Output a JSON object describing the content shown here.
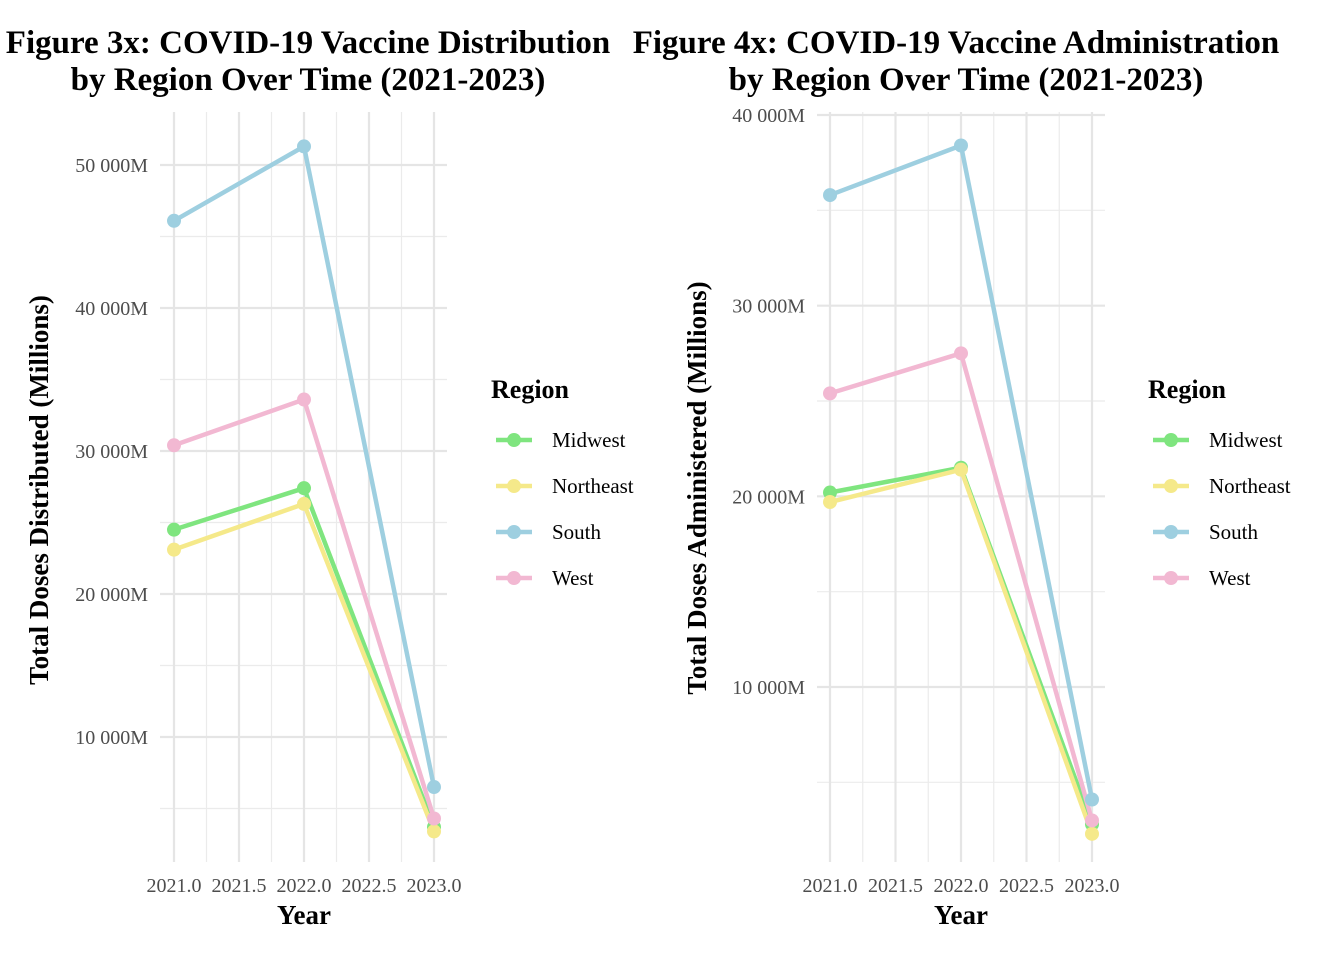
{
  "chart_data": [
    {
      "type": "line",
      "title_line1": "Figure 3x: COVID-19 Vaccine Distribution",
      "title_line2": "by Region Over Time (2021-2023)",
      "xlabel": "Year",
      "ylabel": "Total Doses Distributed (Millions)",
      "x": [
        2021,
        2022,
        2023
      ],
      "xlim": [
        2021,
        2023
      ],
      "x_ticks": [
        2021.0,
        2021.5,
        2022.0,
        2022.5,
        2023.0
      ],
      "x_tick_labels": [
        "2021.0",
        "2021.5",
        "2022.0",
        "2022.5",
        "2023.0"
      ],
      "ylim": [
        3000,
        53500
      ],
      "y_ticks": [
        10000,
        20000,
        30000,
        40000,
        50000
      ],
      "y_tick_labels": [
        "10 000M",
        "20 000M",
        "30 000M",
        "40 000M",
        "50 000M"
      ],
      "grid": true,
      "legend_title": "Region",
      "legend_position": "right",
      "series": [
        {
          "name": "Midwest",
          "values": [
            24500,
            27400,
            3700
          ],
          "color": "#7FE57F"
        },
        {
          "name": "Northeast",
          "values": [
            23100,
            26300,
            3400
          ],
          "color": "#F5E98A"
        },
        {
          "name": "South",
          "values": [
            46100,
            51300,
            6500
          ],
          "color": "#9ECFE0"
        },
        {
          "name": "West",
          "values": [
            30400,
            33600,
            4300
          ],
          "color": "#F2B8D2"
        }
      ]
    },
    {
      "type": "line",
      "title_line1": "Figure 4x: COVID-19 Vaccine Administration",
      "title_line2": "by Region Over Time (2021-2023)",
      "xlabel": "Year",
      "ylabel": "Total Doses Administered (Millions)",
      "x": [
        2021,
        2022,
        2023
      ],
      "xlim": [
        2021,
        2023
      ],
      "x_ticks": [
        2021.0,
        2021.5,
        2022.0,
        2022.5,
        2023.0
      ],
      "x_tick_labels": [
        "2021.0",
        "2021.5",
        "2022.0",
        "2022.5",
        "2023.0"
      ],
      "ylim": [
        1200,
        40000
      ],
      "y_ticks": [
        10000,
        20000,
        30000,
        40000
      ],
      "y_tick_labels": [
        "10 000M",
        "20 000M",
        "30 000M",
        "40 000M"
      ],
      "grid": true,
      "legend_title": "Region",
      "legend_position": "right",
      "series": [
        {
          "name": "Midwest",
          "values": [
            20200,
            21500,
            2800
          ],
          "color": "#7FE57F"
        },
        {
          "name": "Northeast",
          "values": [
            19700,
            21400,
            2300
          ],
          "color": "#F5E98A"
        },
        {
          "name": "South",
          "values": [
            35800,
            38400,
            4100
          ],
          "color": "#9ECFE0"
        },
        {
          "name": "West",
          "values": [
            25400,
            27500,
            3000
          ],
          "color": "#F2B8D2"
        }
      ]
    }
  ]
}
